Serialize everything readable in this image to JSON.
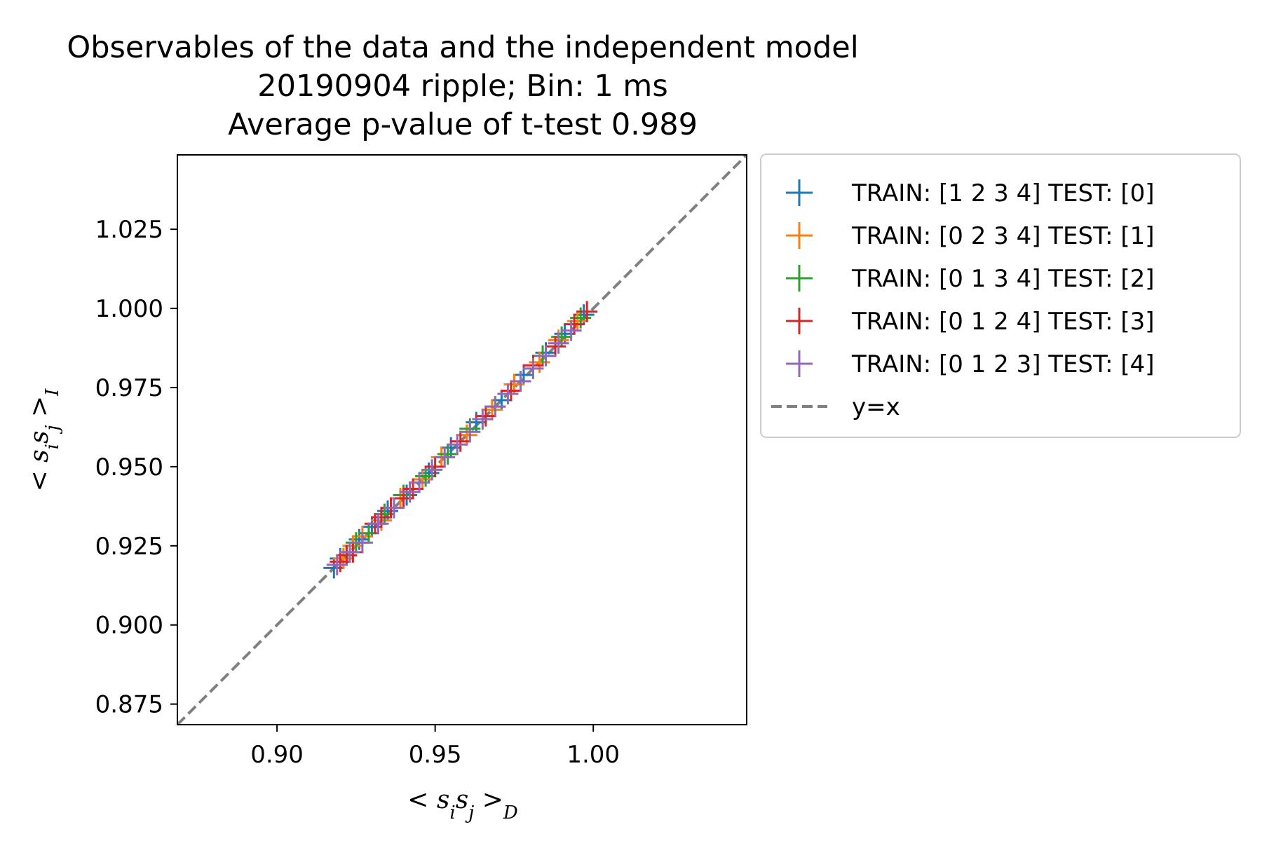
{
  "chart_data": {
    "type": "scatter",
    "title_lines": [
      "Observables of the data and the independent model",
      "20190904 ripple; Bin: 1 ms",
      "Average p-value of t-test 0.989"
    ],
    "xlabel": "< s_i s_j >_D",
    "ylabel": "< s_i s_j >_I",
    "xlim": [
      0.8685,
      1.0485
    ],
    "ylim": [
      0.8685,
      1.0485
    ],
    "xticks": [
      0.9,
      0.95,
      1.0
    ],
    "xtick_labels": [
      "0.90",
      "0.95",
      "1.00"
    ],
    "yticks": [
      0.875,
      0.9,
      0.925,
      0.95,
      0.975,
      1.0,
      1.025
    ],
    "ytick_labels": [
      "0.875",
      "0.900",
      "0.925",
      "0.950",
      "0.975",
      "1.000",
      "1.025"
    ],
    "grid": false,
    "legend_location": "outside-right-top",
    "marker": "+",
    "point_range": [
      0.918,
      0.999
    ],
    "series": [
      {
        "name": "TRAIN: [1 2 3 4] TEST: [0]",
        "color": "#1f77b4",
        "points": [
          [
            0.918,
            0.918
          ],
          [
            0.92,
            0.921
          ],
          [
            0.926,
            0.927
          ],
          [
            0.93,
            0.931
          ],
          [
            0.935,
            0.936
          ],
          [
            0.941,
            0.941
          ],
          [
            0.948,
            0.948
          ],
          [
            0.955,
            0.956
          ],
          [
            0.963,
            0.964
          ],
          [
            0.971,
            0.971
          ],
          [
            0.978,
            0.979
          ],
          [
            0.985,
            0.986
          ],
          [
            0.991,
            0.992
          ],
          [
            0.997,
            0.998
          ]
        ]
      },
      {
        "name": "TRAIN: [0 2 3 4] TEST: [1]",
        "color": "#ff7f0e",
        "points": [
          [
            0.921,
            0.921
          ],
          [
            0.924,
            0.925
          ],
          [
            0.927,
            0.928
          ],
          [
            0.933,
            0.933
          ],
          [
            0.939,
            0.94
          ],
          [
            0.946,
            0.946
          ],
          [
            0.952,
            0.953
          ],
          [
            0.96,
            0.96
          ],
          [
            0.968,
            0.968
          ],
          [
            0.975,
            0.976
          ],
          [
            0.983,
            0.983
          ],
          [
            0.989,
            0.99
          ],
          [
            0.995,
            0.996
          ]
        ]
      },
      {
        "name": "TRAIN: [0 1 3 4] TEST: [2]",
        "color": "#2ca02c",
        "points": [
          [
            0.922,
            0.922
          ],
          [
            0.925,
            0.926
          ],
          [
            0.929,
            0.929
          ],
          [
            0.934,
            0.935
          ],
          [
            0.94,
            0.941
          ],
          [
            0.947,
            0.947
          ],
          [
            0.954,
            0.954
          ],
          [
            0.961,
            0.962
          ],
          [
            0.969,
            0.969
          ],
          [
            0.977,
            0.977
          ],
          [
            0.984,
            0.985
          ],
          [
            0.99,
            0.991
          ],
          [
            0.996,
            0.997
          ]
        ]
      },
      {
        "name": "TRAIN: [0 1 2 4] TEST: [3]",
        "color": "#d62728",
        "points": [
          [
            0.92,
            0.92
          ],
          [
            0.922,
            0.922
          ],
          [
            0.924,
            0.923
          ],
          [
            0.931,
            0.932
          ],
          [
            0.933,
            0.934
          ],
          [
            0.936,
            0.937
          ],
          [
            0.94,
            0.94
          ],
          [
            0.943,
            0.943
          ],
          [
            0.95,
            0.95
          ],
          [
            0.958,
            0.958
          ],
          [
            0.966,
            0.966
          ],
          [
            0.974,
            0.974
          ],
          [
            0.981,
            0.982
          ],
          [
            0.988,
            0.988
          ],
          [
            0.994,
            0.995
          ],
          [
            0.998,
            0.999
          ]
        ]
      },
      {
        "name": "TRAIN: [0 1 2 3] TEST: [4]",
        "color": "#9467bd",
        "points": [
          [
            0.919,
            0.919
          ],
          [
            0.923,
            0.923
          ],
          [
            0.927,
            0.926
          ],
          [
            0.932,
            0.932
          ],
          [
            0.937,
            0.937
          ],
          [
            0.942,
            0.942
          ],
          [
            0.945,
            0.945
          ],
          [
            0.949,
            0.949
          ],
          [
            0.953,
            0.953
          ],
          [
            0.957,
            0.957
          ],
          [
            0.961,
            0.961
          ],
          [
            0.965,
            0.965
          ],
          [
            0.969,
            0.969
          ],
          [
            0.973,
            0.973
          ],
          [
            0.977,
            0.977
          ],
          [
            0.981,
            0.981
          ],
          [
            0.985,
            0.985
          ],
          [
            0.989,
            0.989
          ],
          [
            0.993,
            0.993
          ]
        ]
      }
    ],
    "reference_line": {
      "name": "y=x",
      "color": "#808080",
      "style": "dashed"
    }
  }
}
